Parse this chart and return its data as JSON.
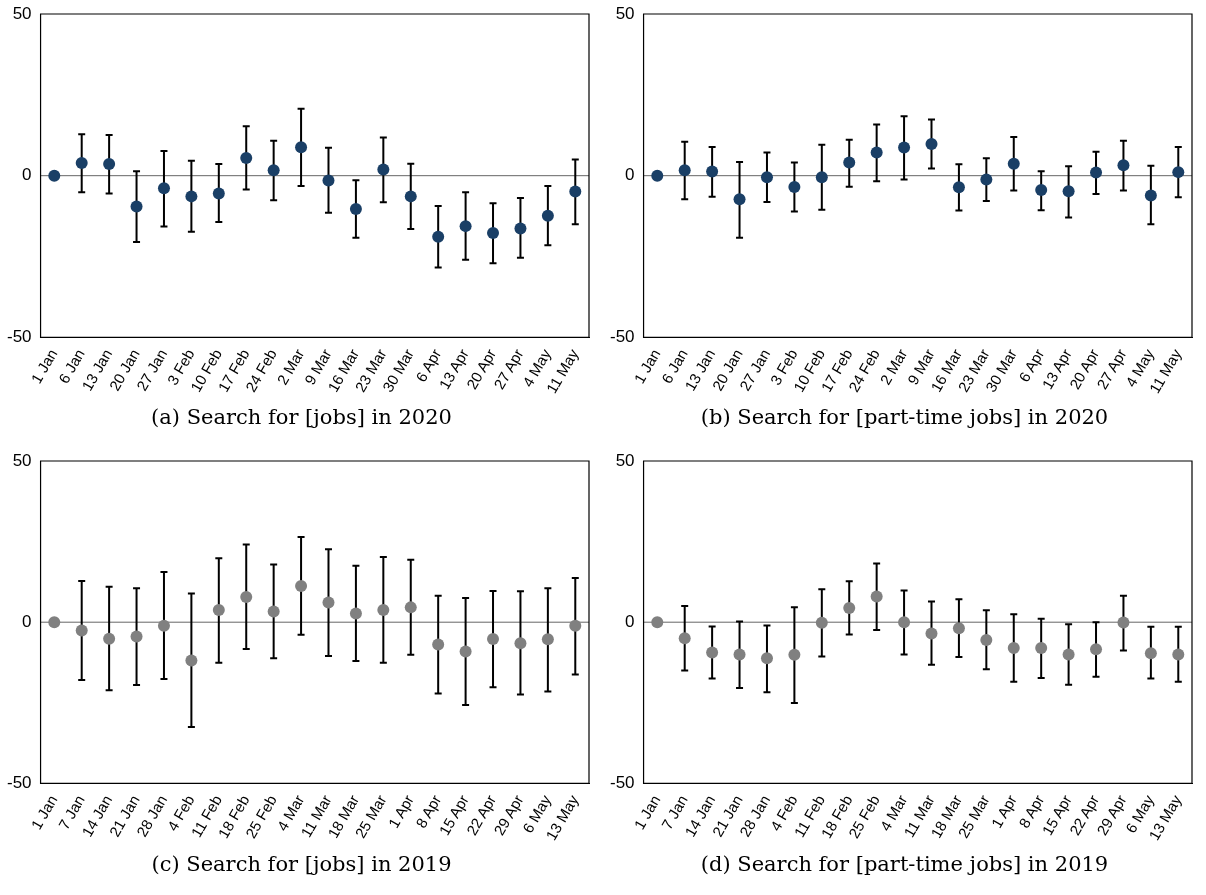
{
  "chart_data": [
    {
      "type": "scatter",
      "title": "(a) Search for [jobs] in 2020",
      "color": "#1a3f66",
      "marker": "circle",
      "ylim": [
        -50,
        50
      ],
      "yticks": [
        -50,
        0,
        50
      ],
      "ref_lines": [
        {
          "axis": "y",
          "value": 0,
          "color": "#666666"
        }
      ],
      "categories": [
        "1 Jan",
        "6 Jan",
        "13 Jan",
        "20 Jan",
        "27 Jan",
        "3 Feb",
        "10 Feb",
        "17 Feb",
        "24 Feb",
        "2 Mar",
        "9 Mar",
        "16 Mar",
        "23 Mar",
        "30 Mar",
        "6 Apr",
        "13 Apr",
        "20 Apr",
        "27 Apr",
        "4 May",
        "11 May"
      ],
      "values": [
        0,
        3.9,
        3.6,
        -9.5,
        -3.9,
        -6.4,
        -5.5,
        5.5,
        1.7,
        8.8,
        -1.5,
        -10.3,
        1.9,
        -6.4,
        -18.9,
        -15.6,
        -17.7,
        -16.3,
        -12.4,
        -4.9
      ],
      "errors": [
        null,
        [
          -5.1,
          12.8
        ],
        [
          -5.5,
          12.6
        ],
        [
          -20.5,
          1.4
        ],
        [
          -15.7,
          7.6
        ],
        [
          -17.3,
          4.6
        ],
        [
          -14.3,
          3.6
        ],
        [
          -4.3,
          15.3
        ],
        [
          -7.6,
          10.8
        ],
        [
          -3.2,
          20.7
        ],
        [
          -11.5,
          8.6
        ],
        [
          -19.2,
          -1.4
        ],
        [
          -8.2,
          11.8
        ],
        [
          -16.5,
          3.7
        ],
        [
          -28.4,
          -9.4
        ],
        [
          -26,
          -5.1
        ],
        [
          -27.1,
          -8.5
        ],
        [
          -25.4,
          -6.9
        ],
        [
          -21.5,
          -3.2
        ],
        [
          -15,
          5
        ]
      ]
    },
    {
      "type": "scatter",
      "title": "(b) Search for [part-time jobs] in 2020",
      "color": "#1a3f66",
      "marker": "circle",
      "ylim": [
        -50,
        50
      ],
      "yticks": [
        -50,
        0,
        50
      ],
      "ref_lines": [
        {
          "axis": "y",
          "value": 0,
          "color": "#666666"
        }
      ],
      "categories": [
        "1 Jan",
        "6 Jan",
        "13 Jan",
        "20 Jan",
        "27 Jan",
        "3 Feb",
        "10 Feb",
        "17 Feb",
        "24 Feb",
        "2 Mar",
        "9 Mar",
        "16 Mar",
        "23 Mar",
        "30 Mar",
        "6 Apr",
        "13 Apr",
        "20 Apr",
        "27 Apr",
        "4 May",
        "11 May"
      ],
      "values": [
        0,
        1.7,
        1.3,
        -7.3,
        -0.5,
        -3.5,
        -0.5,
        4.1,
        7.2,
        8.7,
        9.8,
        -3.6,
        -1.2,
        3.7,
        -4.4,
        -4.8,
        1,
        3.2,
        -6.1,
        1.1
      ],
      "errors": [
        null,
        [
          -7.3,
          10.5
        ],
        [
          -6.5,
          8.9
        ],
        [
          -19.2,
          4.2
        ],
        [
          -8.1,
          7.2
        ],
        [
          -11.1,
          4.1
        ],
        [
          -10.5,
          9.6
        ],
        [
          -3.4,
          11.1
        ],
        [
          -1.7,
          15.8
        ],
        [
          -1.2,
          18.4
        ],
        [
          2.2,
          17.4
        ],
        [
          -10.8,
          3.5
        ],
        [
          -7.8,
          5.4
        ],
        [
          -4.6,
          12
        ],
        [
          -10.7,
          1.4
        ],
        [
          -12.9,
          2.9
        ],
        [
          -5.7,
          7.4
        ],
        [
          -4.6,
          10.8
        ],
        [
          -15,
          3.1
        ],
        [
          -6.7,
          8.9
        ]
      ]
    },
    {
      "type": "scatter",
      "title": "(c) Search for [jobs] in 2019",
      "color": "#808080",
      "marker": "circle",
      "ylim": [
        -50,
        50
      ],
      "yticks": [
        -50,
        0,
        50
      ],
      "ref_lines": [
        {
          "axis": "y",
          "value": 0,
          "color": "#666666"
        }
      ],
      "categories": [
        "1 Jan",
        "7 Jan",
        "14 Jan",
        "21 Jan",
        "28 Jan",
        "4 Feb",
        "11 Feb",
        "18 Feb",
        "25 Feb",
        "4 Mar",
        "11 Mar",
        "18 Mar",
        "25 Mar",
        "1 Apr",
        "8 Apr",
        "15 Apr",
        "22 Apr",
        "29 Apr",
        "6 May",
        "13 May"
      ],
      "values": [
        0,
        -2.6,
        -5.1,
        -4.4,
        -1.1,
        -11.9,
        3.8,
        7.8,
        3.3,
        11.2,
        6.1,
        2.7,
        3.8,
        4.6,
        -6.9,
        -9.1,
        -5.2,
        -6.5,
        -5.3,
        -1.1
      ],
      "errors": [
        null,
        [
          -17.9,
          12.8
        ],
        [
          -21.1,
          11
        ],
        [
          -19.5,
          10.5
        ],
        [
          -17.6,
          15.6
        ],
        [
          -32.5,
          8.9
        ],
        [
          -12.6,
          19.8
        ],
        [
          -8.3,
          24.1
        ],
        [
          -11.2,
          17.9
        ],
        [
          -3.9,
          26.4
        ],
        [
          -10.5,
          22.6
        ],
        [
          -12,
          17.5
        ],
        [
          -12.6,
          20.2
        ],
        [
          -10.1,
          19.4
        ],
        [
          -22.1,
          8.2
        ],
        [
          -25.7,
          7.5
        ],
        [
          -20.2,
          9.7
        ],
        [
          -22.4,
          9.6
        ],
        [
          -21.5,
          10.5
        ],
        [
          -16.2,
          13.7
        ]
      ]
    },
    {
      "type": "scatter",
      "title": "(d) Search for [part-time jobs] in 2019",
      "color": "#808080",
      "marker": "circle",
      "ylim": [
        -50,
        50
      ],
      "yticks": [
        -50,
        0,
        50
      ],
      "ref_lines": [
        {
          "axis": "y",
          "value": 0,
          "color": "#666666"
        }
      ],
      "categories": [
        "1 Jan",
        "7 Jan",
        "14 Jan",
        "21 Jan",
        "28 Jan",
        "4 Feb",
        "11 Feb",
        "18 Feb",
        "25 Feb",
        "4 Mar",
        "11 Mar",
        "18 Mar",
        "25 Mar",
        "1 Apr",
        "8 Apr",
        "15 Apr",
        "22 Apr",
        "29 Apr",
        "6 May",
        "13 May"
      ],
      "values": [
        0,
        -5,
        -9.4,
        -10,
        -11.2,
        -10.1,
        -0.2,
        4.4,
        8,
        0,
        -3.5,
        -1.9,
        -5.5,
        -8,
        -8,
        -10,
        -8.4,
        -0.1,
        -9.6,
        -10
      ],
      "errors": [
        null,
        [
          -15,
          5
        ],
        [
          -17.5,
          -1.3
        ],
        [
          -20.4,
          0.2
        ],
        [
          -21.7,
          -1
        ],
        [
          -25.1,
          4.6
        ],
        [
          -10.6,
          10.2
        ],
        [
          -3.8,
          12.7
        ],
        [
          -2.4,
          18.2
        ],
        [
          -10,
          9.8
        ],
        [
          -13.2,
          6.4
        ],
        [
          -10.8,
          7.1
        ],
        [
          -14.6,
          3.7
        ],
        [
          -18.5,
          2.5
        ],
        [
          -17.3,
          1.1
        ],
        [
          -19.4,
          -0.6
        ],
        [
          -16.9,
          0
        ],
        [
          -8.8,
          8.2
        ],
        [
          -17.5,
          -1.4
        ],
        [
          -18.5,
          -1.4
        ]
      ]
    }
  ]
}
